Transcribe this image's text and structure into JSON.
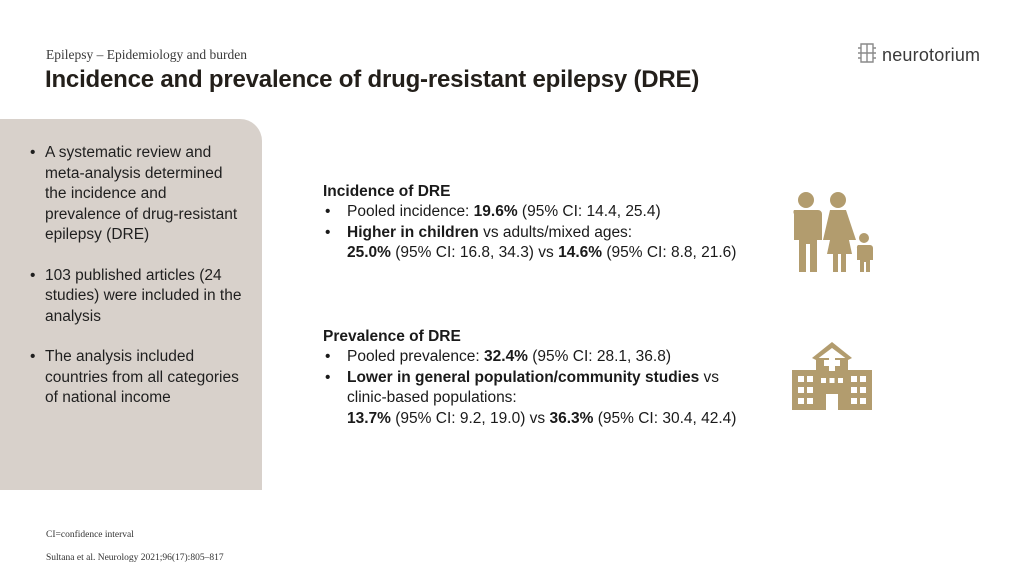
{
  "header": {
    "subtitle": "Epilepsy – Epidemiology and burden",
    "title": "Incidence and prevalence of drug-resistant epilepsy (DRE)",
    "logo_text": "neurotorium"
  },
  "sidebar": {
    "bullets": [
      "A systematic review and meta-analysis determined the incidence and prevalence of drug-resistant epilepsy (DRE)",
      "103 published articles (24 studies) were included in the analysis",
      "The analysis included countries from all categories of national income"
    ]
  },
  "incidence": {
    "heading": "Incidence of DRE",
    "b1_label": "Pooled incidence: ",
    "b1_value": "19.6%",
    "b1_ci": " (95% CI: 14.4, 25.4)",
    "b2_bold": "Higher in children",
    "b2_rest": " vs adults/mixed ages:",
    "b2_v1": "25.0%",
    "b2_ci1": " (95% CI: 16.8, 34.3) vs ",
    "b2_v2": "14.6%",
    "b2_ci2": " (95% CI: 8.8, 21.6)"
  },
  "prevalence": {
    "heading": "Prevalence of DRE",
    "b1_label": "Pooled prevalence: ",
    "b1_value": "32.4%",
    "b1_ci": " (95% CI: 28.1, 36.8)",
    "b2_bold": "Lower in general population/community studies",
    "b2_rest": " vs",
    "b2_line2": "clinic-based populations:",
    "b2_v1": "13.7%",
    "b2_ci1": " (95% CI: 9.2, 19.0) vs ",
    "b2_v2": "36.3%",
    "b2_ci2": " (95% CI: 30.4, 42.4)"
  },
  "icons": {
    "family": "family-icon",
    "hospital": "hospital-icon",
    "logo": "neurotorium-logo-icon"
  },
  "colors": {
    "accent": "#b29c6e",
    "sidebar_bg": "#d8d1cb"
  },
  "footer": {
    "abbrev": "CI=confidence interval",
    "citation": "Sultana et al. Neurology 2021;96(17):805–817"
  }
}
